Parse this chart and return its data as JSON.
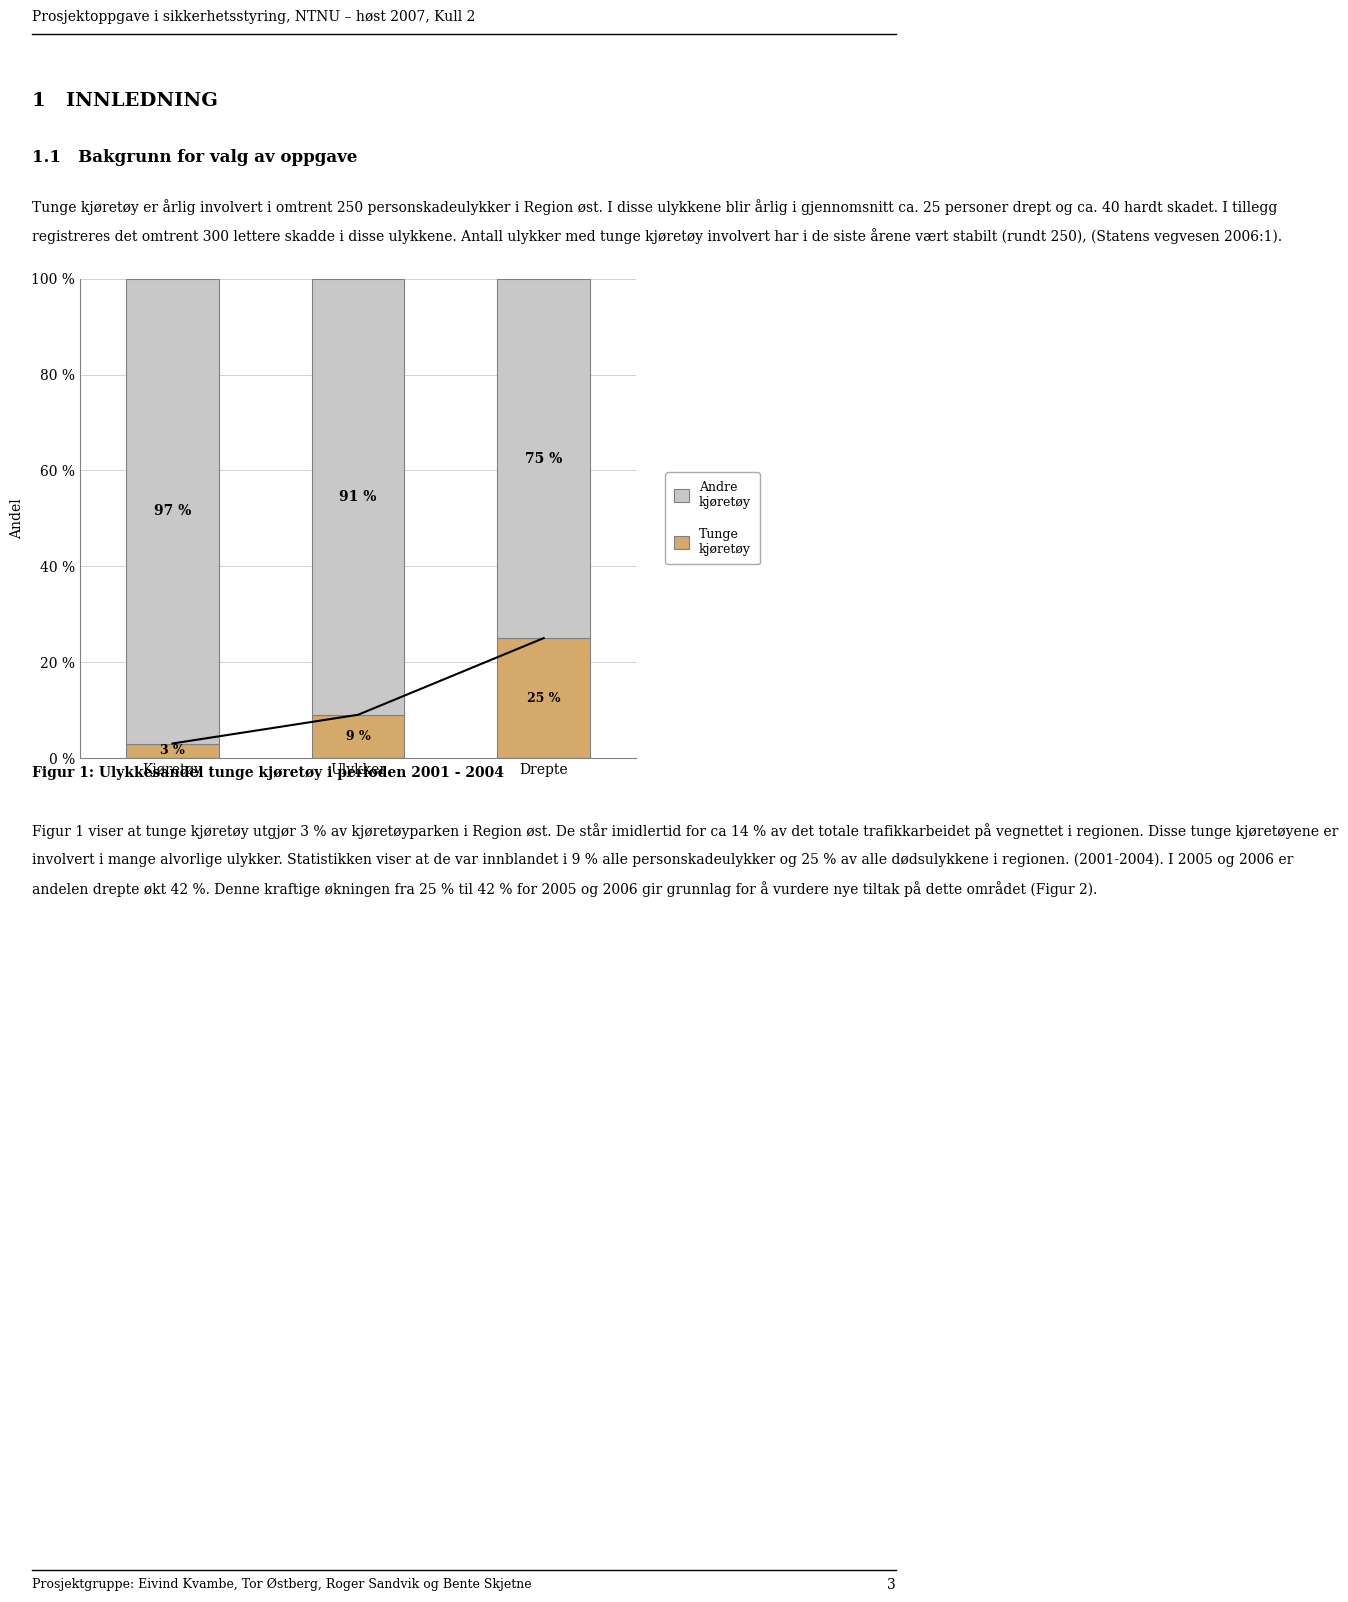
{
  "page_title": "Prosjektoppgave i sikkerhetsstyring, NTNU – høst 2007, Kull 2",
  "footer_text": "Prosjektgruppe: Eivind Kvambe, Tor Østberg, Roger Sandvik og Bente Skjetne",
  "page_number": "3",
  "section_heading": "1   INNLEDNING",
  "subsection_heading": "1.1   Bakgrunn for valg av oppgave",
  "para1_lines": [
    "Tunge kjøretøy er årlig involvert i omtrent 250 personskadeulykker i Region øst. I disse ulykkene blir årlig i gjennomsnitt ca. 25 personer drept og ca. 40 hardt skadet. I tillegg",
    "registreres det omtrent 300 lettere skadde i disse ulykkene. Antall ulykker med tunge kjøretøy involvert har i de siste årene vært stabilt (rundt 250), (Statens vegvesen 2006:1)."
  ],
  "figure_caption": "Figur 1: Ulykkesandel tunge kjøretøy i perioden 2001 - 2004",
  "para2_lines": [
    "Figur 1 viser at tunge kjøretøy utgjør 3 % av kjøretøyparken i Region øst. De står imidlertid for ca 14 % av det totale trafikkarbeidet på vegnettet i regionen. Disse tunge kjøretøyene er",
    "involvert i mange alvorlige ulykker. Statistikken viser at de var innblandet i 9 % alle personskadeulykker og 25 % av alle dødsulykkene i regionen. (2001-2004). I 2005 og 2006 er",
    "andelen drepte økt 42 %. Denne kraftige økningen fra 25 % til 42 % for 2005 og 2006 gir grunnlag for å vurdere nye tiltak på dette området (Figur 2)."
  ],
  "categories": [
    "Kjøretøy",
    "Ulykker",
    "Drepte"
  ],
  "andre_values": [
    97,
    91,
    75
  ],
  "tunge_values": [
    3,
    9,
    25
  ],
  "andre_labels": [
    "97 %",
    "91 %",
    "75 %"
  ],
  "tunge_labels": [
    "3 %",
    "9 %",
    "25 %"
  ],
  "ylabel": "Andel",
  "ytick_labels": [
    "0 %",
    "20 %",
    "40 %",
    "60 %",
    "80 %",
    "100 %"
  ],
  "ytick_values": [
    0,
    20,
    40,
    60,
    80,
    100
  ],
  "legend_andre": "Andre\nkjøretøy",
  "legend_tunge": "Tunge\nkjøretøy",
  "color_andre": "#C8C8C8",
  "color_tunge": "#D4A96A",
  "line_color": "#000000",
  "background": "#FFFFFF",
  "bar_edge_color": "#808080",
  "bar_width": 0.5
}
